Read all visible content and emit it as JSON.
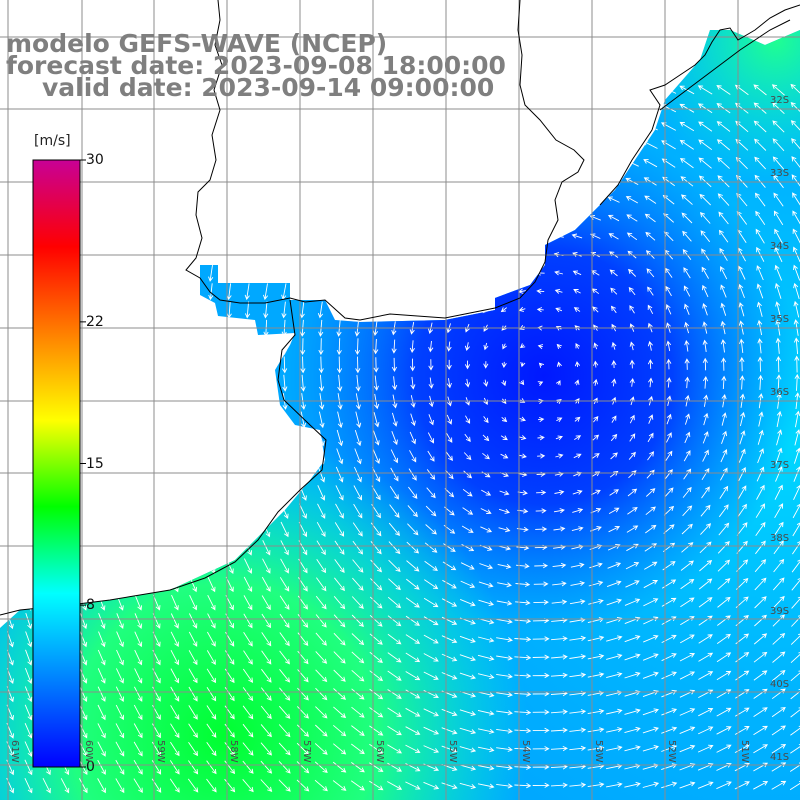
{
  "title": {
    "line1": "modelo GEFS-WAVE (NCEP)",
    "line2": "forecast date: 2023-09-08 18:00:00",
    "line3": "valid date: 2023-09-14 09:00:00"
  },
  "colorbar": {
    "unit": "[m/s]",
    "ticks": [
      {
        "label": "30",
        "value": 30
      },
      {
        "label": "22",
        "value": 22
      },
      {
        "label": "15",
        "value": 15
      },
      {
        "label": "8",
        "value": 8
      },
      {
        "label": "0",
        "value": 0
      }
    ],
    "colors": [
      "#0000ff",
      "#0080ff",
      "#00ffff",
      "#00ff00",
      "#ffff00",
      "#ff8000",
      "#ff0000",
      "#c80096"
    ]
  },
  "lat_labels": [
    "32S",
    "33S",
    "34S",
    "35S",
    "36S",
    "37S",
    "38S",
    "39S",
    "40S",
    "41S"
  ],
  "lon_labels": [
    "61W",
    "60W",
    "59W",
    "58W",
    "57W",
    "56W",
    "55W",
    "54W",
    "53W",
    "52W",
    "51W"
  ],
  "colors": {
    "title": "#7f7f7f",
    "grid": "#8c8c8c",
    "coast": "#000000",
    "arrow": "#ffffff"
  }
}
